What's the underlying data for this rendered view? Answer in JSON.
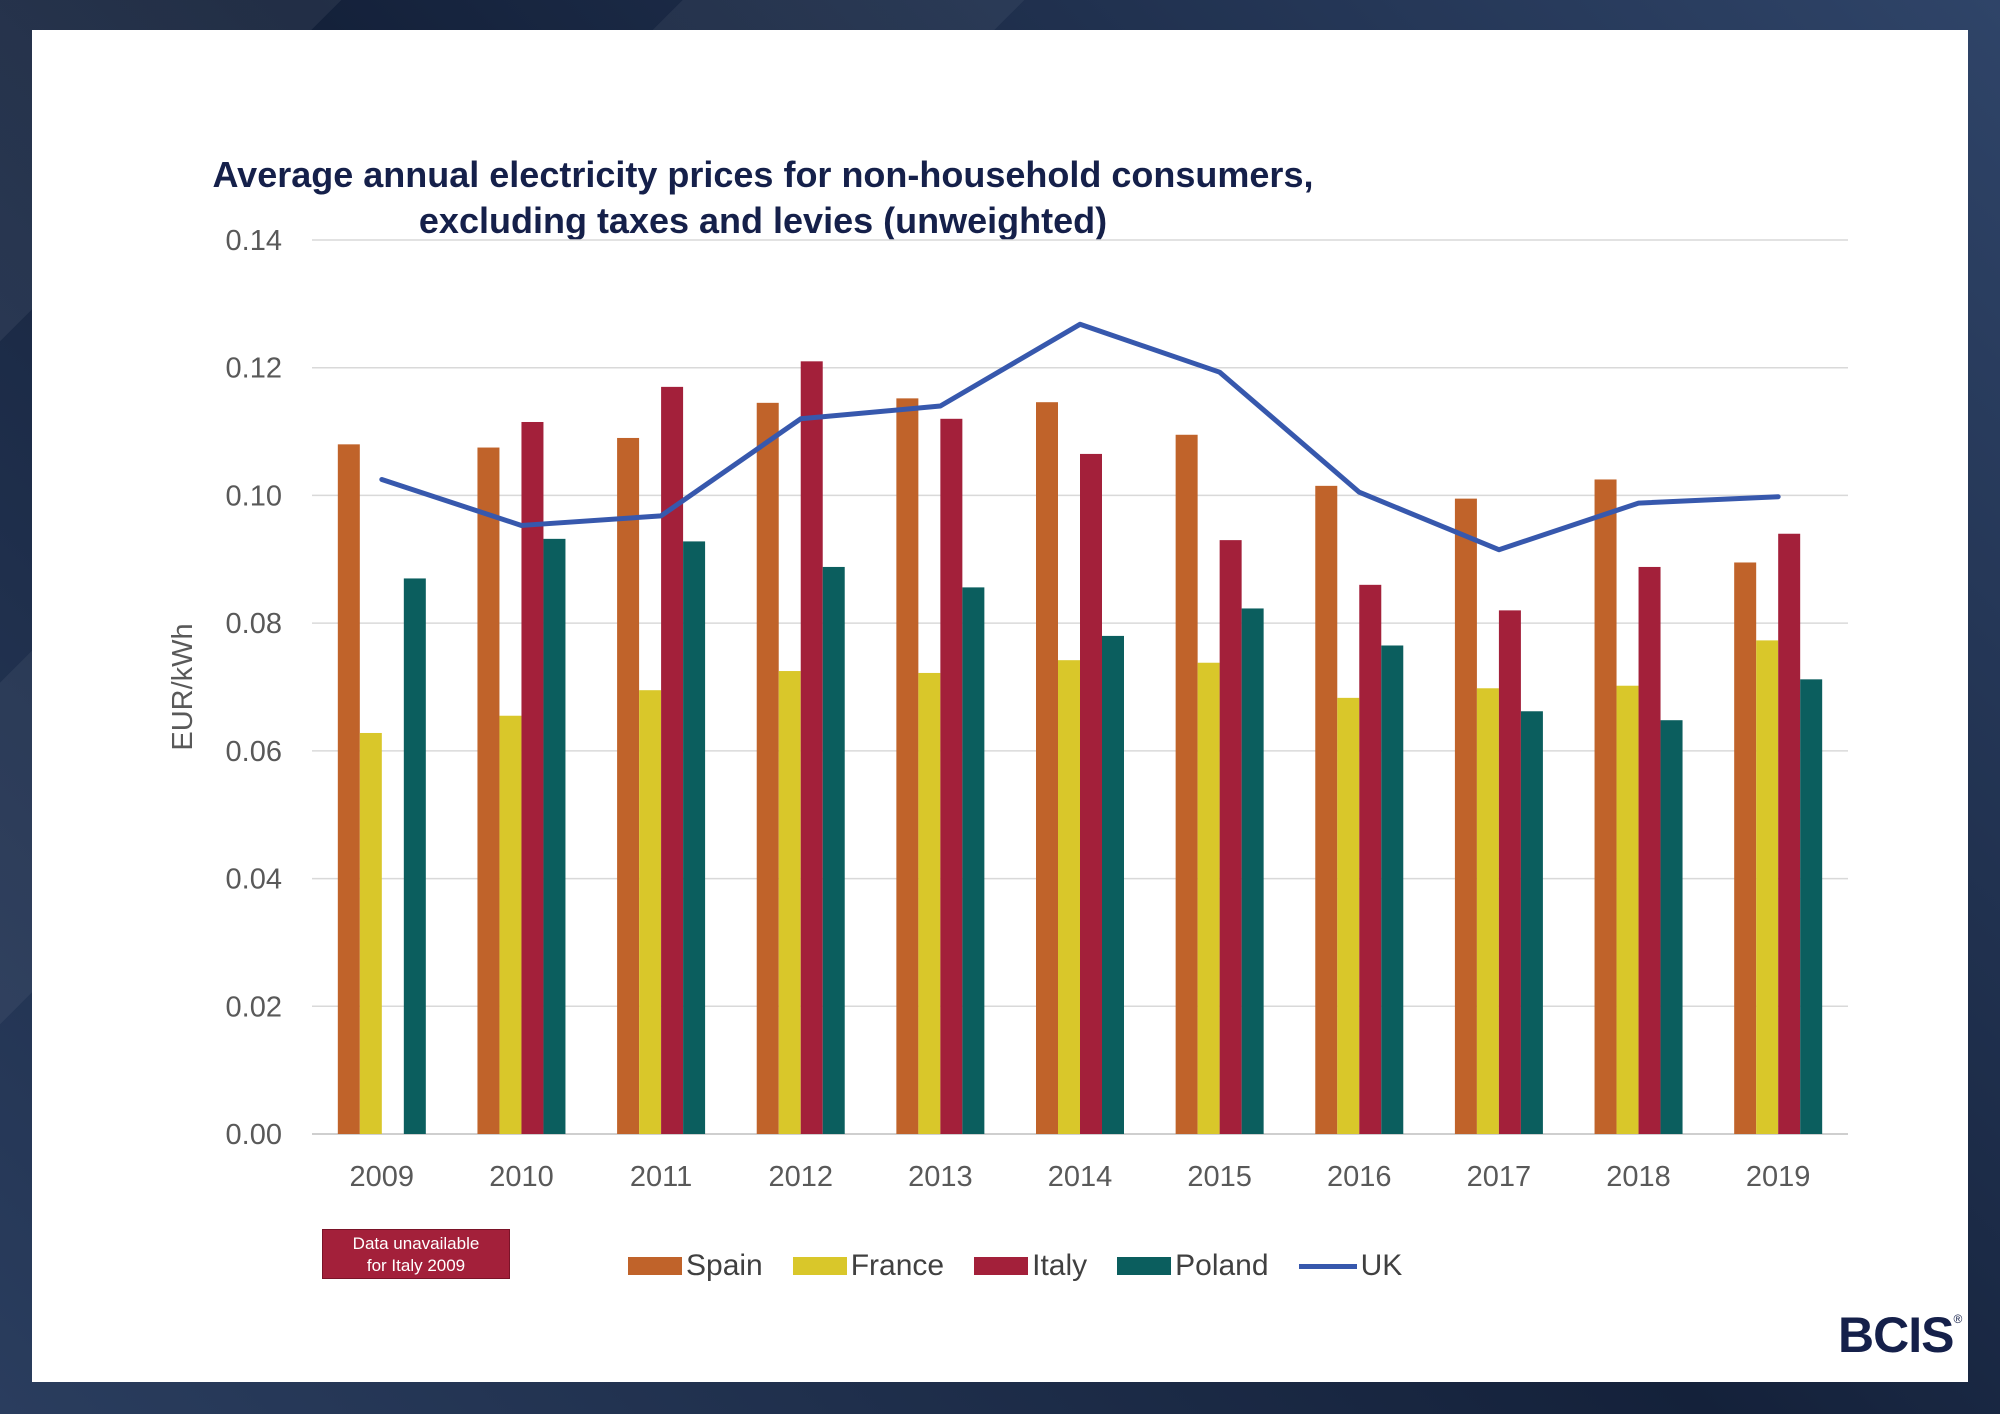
{
  "chart_data": {
    "type": "bar",
    "title_line1": "Average annual electricity prices for non-household consumers,",
    "title_line2": "excluding taxes and levies (unweighted)",
    "xlabel": "",
    "ylabel": "EUR/kWh",
    "ylim": [
      0,
      0.14
    ],
    "yticks": [
      "0.00",
      "0.02",
      "0.04",
      "0.06",
      "0.08",
      "0.10",
      "0.12",
      "0.14"
    ],
    "grid": true,
    "legend_position": "bottom",
    "categories": [
      "2009",
      "2010",
      "2011",
      "2012",
      "2013",
      "2014",
      "2015",
      "2016",
      "2017",
      "2018",
      "2019"
    ],
    "series": [
      {
        "name": "Spain",
        "kind": "bar",
        "color": "#c0632a",
        "values": [
          0.108,
          0.1075,
          0.109,
          0.1145,
          0.1152,
          0.1146,
          0.1095,
          0.1015,
          0.0995,
          0.1025,
          0.0895
        ]
      },
      {
        "name": "France",
        "kind": "bar",
        "color": "#d9c72a",
        "values": [
          0.0628,
          0.0655,
          0.0695,
          0.0725,
          0.0722,
          0.0742,
          0.0738,
          0.0683,
          0.0698,
          0.0702,
          0.0773
        ]
      },
      {
        "name": "Italy",
        "kind": "bar",
        "color": "#a3203a",
        "values": [
          null,
          0.1115,
          0.117,
          0.121,
          0.112,
          0.1065,
          0.093,
          0.086,
          0.082,
          0.0888,
          0.094
        ]
      },
      {
        "name": "Poland",
        "kind": "bar",
        "color": "#0b5e5e",
        "values": [
          0.087,
          0.0932,
          0.0928,
          0.0888,
          0.0856,
          0.078,
          0.0823,
          0.0765,
          0.0662,
          0.0648,
          0.0712
        ]
      },
      {
        "name": "UK",
        "kind": "line",
        "color": "#3758ad",
        "values": [
          0.1025,
          0.0953,
          0.0968,
          0.112,
          0.114,
          0.1268,
          0.1193,
          0.1005,
          0.0915,
          0.0988,
          0.0998
        ]
      }
    ],
    "annotation": "Data unavailable for Italy 2009"
  },
  "note": {
    "line1": "Data unavailable",
    "line2": "for Italy 2009"
  },
  "logo": {
    "text": "BCIS",
    "mark": "®"
  },
  "colors": {
    "title": "#15204a",
    "grid": "#d9d9d9",
    "axis_text": "#595959"
  }
}
